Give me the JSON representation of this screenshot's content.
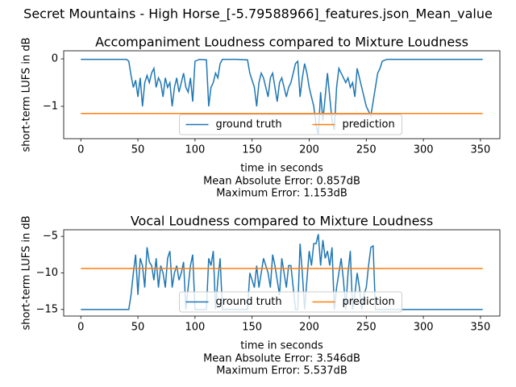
{
  "title": "Secret Mountains - High Horse_[-5.79588966]_features.json_Mean_value",
  "chart_data": [
    {
      "type": "line",
      "title": "Accompaniment Loudness compared to Mixture Loudness",
      "xlabel": "time in seconds",
      "ylabel": "short-term LUFS in dB",
      "annotations": [
        "Mean Absolute Error: 0.857dB",
        "Maximum Error: 1.153dB"
      ],
      "xlim": [
        -15,
        367
      ],
      "xticks": [
        0,
        50,
        100,
        150,
        200,
        250,
        300,
        350
      ],
      "ylim": [
        -1.68,
        0.17
      ],
      "yticks": [
        {
          "value": -1,
          "label": "−1"
        },
        0
      ],
      "legend": "lower center",
      "series": [
        {
          "name": "ground truth",
          "color": "#1f77b4",
          "x": [
            0,
            20,
            40,
            42,
            44,
            46,
            48,
            50,
            52,
            54,
            56,
            58,
            60,
            62,
            64,
            66,
            68,
            70,
            72,
            74,
            76,
            78,
            80,
            82,
            84,
            86,
            88,
            90,
            92,
            94,
            96,
            98,
            100,
            104,
            110,
            112,
            114,
            116,
            118,
            120,
            122,
            124,
            136,
            146,
            148,
            150,
            152,
            154,
            156,
            158,
            160,
            162,
            164,
            166,
            168,
            170,
            172,
            174,
            176,
            178,
            180,
            182,
            184,
            186,
            188,
            190,
            192,
            194,
            196,
            198,
            200,
            202,
            204,
            206,
            208,
            210,
            212,
            214,
            216,
            218,
            220,
            222,
            224,
            226,
            228,
            230,
            232,
            234,
            236,
            238,
            240,
            242,
            244,
            246,
            248,
            250,
            252,
            254,
            256,
            258,
            260,
            262,
            264,
            268,
            300,
            352
          ],
          "values": [
            -0.01,
            -0.01,
            -0.01,
            -0.05,
            -0.35,
            -0.6,
            -0.45,
            -0.8,
            -0.4,
            -1.0,
            -0.5,
            -0.35,
            -0.5,
            -0.3,
            -0.2,
            -0.6,
            -0.4,
            -0.5,
            -0.8,
            -0.4,
            -0.6,
            -0.5,
            -1.0,
            -0.6,
            -0.4,
            -0.7,
            -0.5,
            -0.3,
            -0.6,
            -0.7,
            -0.4,
            -0.9,
            -0.05,
            -0.01,
            -0.02,
            -1.0,
            -0.6,
            -0.5,
            -0.3,
            -0.4,
            -0.1,
            -0.01,
            -0.01,
            -0.02,
            -0.3,
            -0.45,
            -0.6,
            -1.0,
            -0.5,
            -0.3,
            -0.4,
            -0.6,
            -0.8,
            -0.4,
            -0.3,
            -0.6,
            -0.9,
            -0.5,
            -0.4,
            -0.6,
            -0.8,
            -0.6,
            -0.5,
            -0.3,
            -0.1,
            -0.05,
            -0.8,
            -0.4,
            -0.1,
            -0.3,
            -0.6,
            -0.8,
            -1.0,
            -1.4,
            -1.6,
            -0.7,
            -1.3,
            -0.8,
            -0.3,
            -0.8,
            -1.3,
            -1.5,
            -0.6,
            -0.2,
            -0.3,
            -0.4,
            -0.5,
            -0.4,
            -0.6,
            -0.5,
            -0.8,
            -0.2,
            -0.4,
            -0.6,
            -0.8,
            -1.0,
            -1.1,
            -1.2,
            -0.9,
            -0.6,
            -0.3,
            -0.2,
            -0.05,
            -0.01,
            -0.01,
            -0.01
          ]
        },
        {
          "name": "prediction",
          "color": "#ff7f0e",
          "x": [
            0,
            352
          ],
          "values": [
            -1.15,
            -1.15
          ]
        }
      ]
    },
    {
      "type": "line",
      "title": "Vocal Loudness compared to Mixture Loudness",
      "xlabel": "time in seconds",
      "ylabel": "short-term LUFS in dB",
      "annotations": [
        "Mean Absolute Error: 3.546dB",
        "Maximum Error: 5.537dB"
      ],
      "xlim": [
        -15,
        367
      ],
      "xticks": [
        0,
        50,
        100,
        150,
        200,
        250,
        300,
        350
      ],
      "ylim": [
        -15.9,
        -4.1
      ],
      "yticks": [
        {
          "value": -15,
          "label": "−15"
        },
        {
          "value": -10,
          "label": "−10"
        },
        {
          "value": -5,
          "label": "−5"
        }
      ],
      "legend": "lower center",
      "series": [
        {
          "name": "ground truth",
          "color": "#1f77b4",
          "x": [
            0,
            20,
            42,
            44,
            46,
            48,
            50,
            52,
            54,
            56,
            58,
            60,
            62,
            64,
            66,
            68,
            70,
            72,
            74,
            76,
            78,
            80,
            82,
            84,
            86,
            88,
            90,
            92,
            94,
            96,
            98,
            100,
            110,
            112,
            114,
            116,
            118,
            120,
            122,
            124,
            146,
            148,
            150,
            152,
            154,
            156,
            158,
            160,
            162,
            164,
            166,
            168,
            170,
            172,
            174,
            176,
            178,
            180,
            182,
            184,
            186,
            188,
            190,
            192,
            194,
            196,
            198,
            200,
            202,
            204,
            206,
            208,
            210,
            212,
            214,
            216,
            218,
            220,
            222,
            224,
            226,
            228,
            230,
            232,
            234,
            236,
            238,
            240,
            242,
            244,
            246,
            248,
            250,
            252,
            254,
            256,
            258,
            264,
            300,
            352
          ],
          "values": [
            -15,
            -15,
            -15,
            -13,
            -10,
            -7.5,
            -13,
            -8,
            -9,
            -12,
            -6.5,
            -8.5,
            -9,
            -11,
            -8,
            -12,
            -9,
            -10,
            -12,
            -8,
            -7,
            -12,
            -10,
            -9,
            -11,
            -10,
            -8.5,
            -15,
            -12,
            -9,
            -7.5,
            -15,
            -15,
            -8,
            -9,
            -7,
            -15,
            -11,
            -8,
            -15,
            -15,
            -10,
            -11,
            -12,
            -9,
            -12,
            -10,
            -8,
            -9,
            -10,
            -12,
            -7.5,
            -9,
            -11,
            -13,
            -8,
            -10,
            -12,
            -9,
            -9,
            -12,
            -15,
            -15,
            -6,
            -10,
            -15,
            -11,
            -7,
            -9,
            -6,
            -6,
            -4.7,
            -9,
            -5.5,
            -8,
            -7,
            -9,
            -6.5,
            -15,
            -12,
            -10,
            -8,
            -11,
            -15,
            -10,
            -7,
            -15,
            -13,
            -10,
            -12,
            -15,
            -13,
            -12,
            -9,
            -6.5,
            -6.3,
            -15,
            -15,
            -15,
            -15
          ]
        },
        {
          "name": "prediction",
          "color": "#ff7f0e",
          "x": [
            0,
            352
          ],
          "values": [
            -9.4,
            -9.4
          ]
        }
      ]
    }
  ]
}
